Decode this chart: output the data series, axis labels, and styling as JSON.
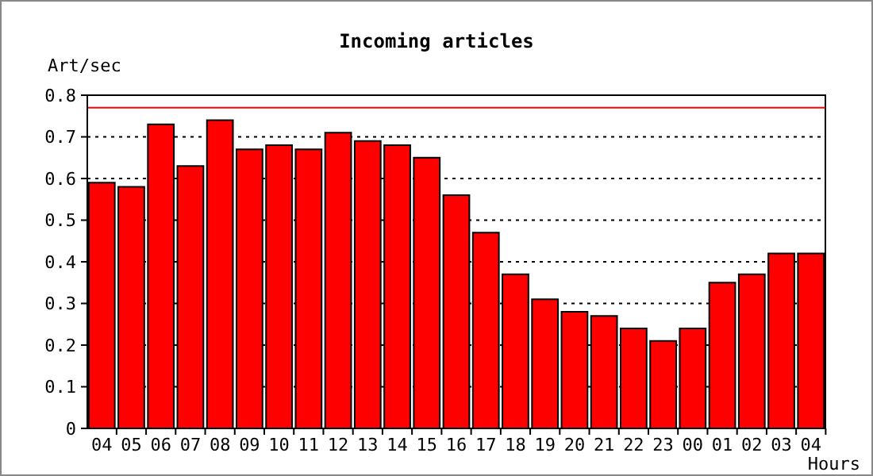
{
  "chart_data": {
    "type": "bar",
    "title": "Incoming articles",
    "ylabel": "Art/sec",
    "xlabel": "Hours",
    "categories": [
      "04",
      "05",
      "06",
      "07",
      "08",
      "09",
      "10",
      "11",
      "12",
      "13",
      "14",
      "15",
      "16",
      "17",
      "18",
      "19",
      "20",
      "21",
      "22",
      "23",
      "00",
      "01",
      "02",
      "03",
      "04"
    ],
    "values": [
      0.59,
      0.58,
      0.73,
      0.63,
      0.74,
      0.67,
      0.68,
      0.67,
      0.71,
      0.69,
      0.68,
      0.65,
      0.56,
      0.47,
      0.37,
      0.31,
      0.28,
      0.27,
      0.24,
      0.21,
      0.24,
      0.35,
      0.37,
      0.42,
      0.42
    ],
    "color": "#ff0000",
    "ylim": [
      0,
      0.8
    ],
    "yticks": [
      0,
      0.1,
      0.2,
      0.3,
      0.4,
      0.5,
      0.6,
      0.7,
      0.8
    ],
    "grid": "y",
    "ref_lines": [
      {
        "axis": "y",
        "value": 0.77,
        "color": "#ff0000"
      }
    ]
  }
}
